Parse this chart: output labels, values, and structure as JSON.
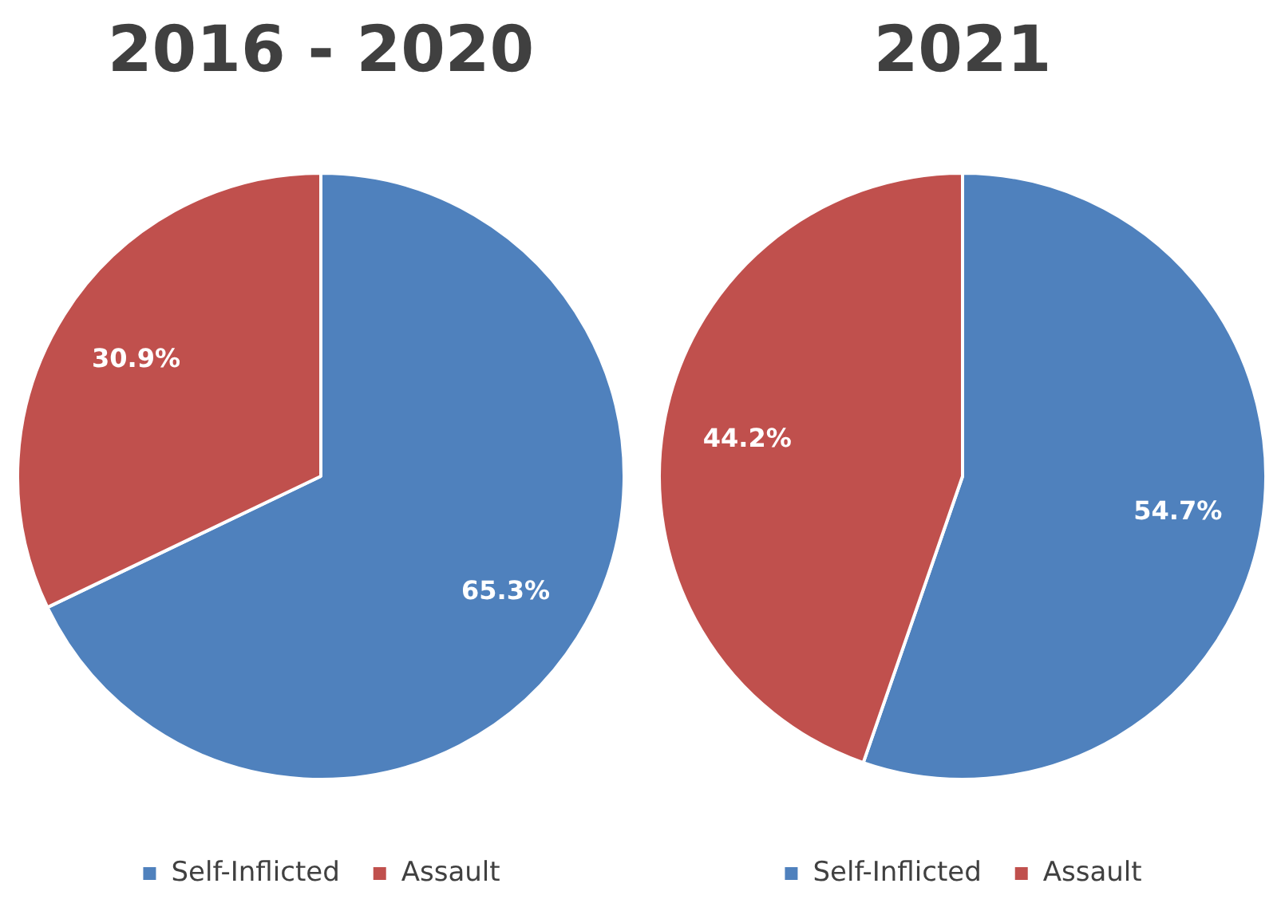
{
  "chart_data": [
    {
      "type": "pie",
      "title": "2016 - 2020",
      "categories": [
        "Self-Inflicted",
        "Assault"
      ],
      "values": [
        65.3,
        30.9
      ],
      "colors": [
        "#4f81bd",
        "#c0504d"
      ],
      "value_labels": [
        "65.3%",
        "30.9%"
      ],
      "legend": "bottom"
    },
    {
      "type": "pie",
      "title": "2021",
      "categories": [
        "Self-Inflicted",
        "Assault"
      ],
      "values": [
        54.7,
        44.2
      ],
      "colors": [
        "#4f81bd",
        "#c0504d"
      ],
      "value_labels": [
        "54.7%",
        "44.2%"
      ],
      "legend": "bottom"
    }
  ]
}
